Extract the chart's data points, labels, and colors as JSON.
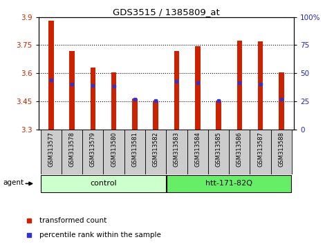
{
  "title": "GDS3515 / 1385809_at",
  "samples": [
    "GSM313577",
    "GSM313578",
    "GSM313579",
    "GSM313580",
    "GSM313581",
    "GSM313582",
    "GSM313583",
    "GSM313584",
    "GSM313585",
    "GSM313586",
    "GSM313587",
    "GSM313588"
  ],
  "transformed_count": [
    3.88,
    3.72,
    3.63,
    3.605,
    3.465,
    3.455,
    3.72,
    3.745,
    3.455,
    3.775,
    3.77,
    3.605
  ],
  "percentile_rank_values": [
    3.565,
    3.54,
    3.535,
    3.53,
    3.46,
    3.455,
    3.555,
    3.548,
    3.455,
    3.548,
    3.54,
    3.46
  ],
  "ylim_left": [
    3.3,
    3.9
  ],
  "ylim_right": [
    0,
    100
  ],
  "yticks_left": [
    3.3,
    3.45,
    3.6,
    3.75,
    3.9
  ],
  "yticks_right": [
    0,
    25,
    50,
    75,
    100
  ],
  "ytick_labels_right": [
    "0",
    "25",
    "50",
    "75",
    "100%"
  ],
  "bar_color": "#cc2200",
  "percentile_color": "#3333cc",
  "group_labels": [
    "control",
    "htt-171-82Q"
  ],
  "group_ranges": [
    [
      0,
      5
    ],
    [
      6,
      11
    ]
  ],
  "group_colors_light": [
    "#ccffcc",
    "#66ee66"
  ],
  "agent_label": "agent",
  "legend_items": [
    "transformed count",
    "percentile rank within the sample"
  ],
  "legend_colors": [
    "#cc2200",
    "#3333cc"
  ],
  "bar_width": 0.25,
  "background_color": "#ffffff",
  "plot_bg": "#ffffff",
  "tick_label_color_left": "#cc2200",
  "tick_label_color_right": "#2222bb",
  "label_cell_color": "#cccccc"
}
